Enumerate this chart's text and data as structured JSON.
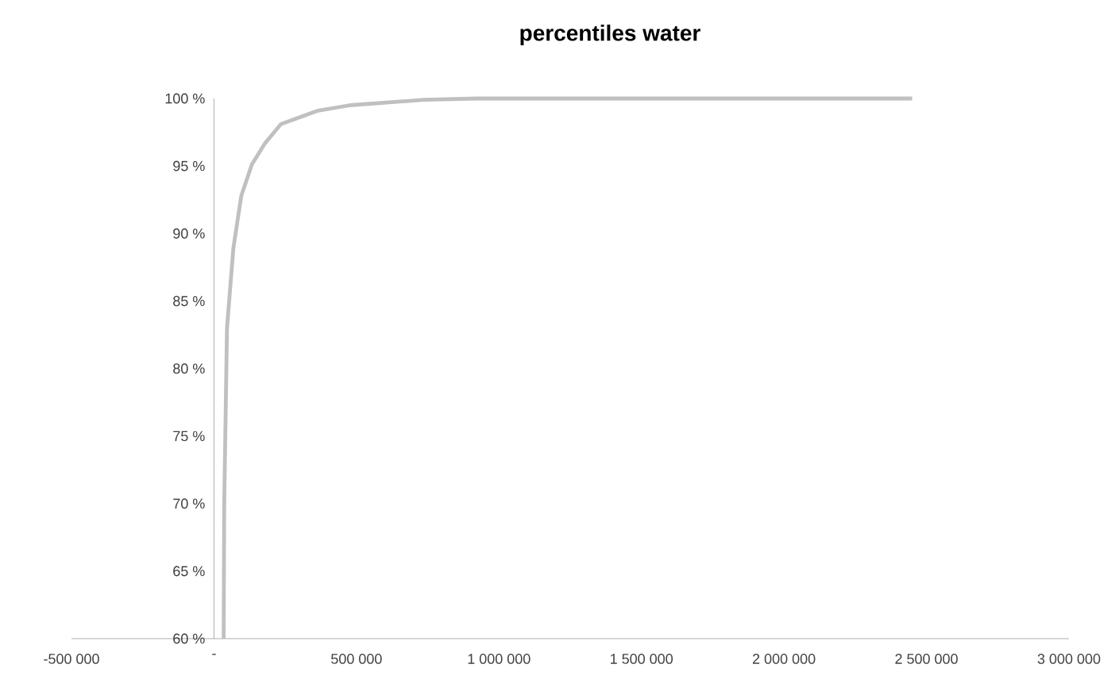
{
  "chart_data": {
    "type": "line",
    "title": "percentiles water",
    "x": [
      34000,
      36000,
      45700,
      68000,
      95900,
      132700,
      179500,
      235000,
      365000,
      477000,
      737000,
      925000,
      2450000
    ],
    "series": [
      {
        "color": "#c0c0c0",
        "values": [
          60,
          70,
          83,
          88.9,
          92.8,
          95.1,
          96.7,
          98.1,
          99.1,
          99.5,
          99.9,
          100,
          100
        ]
      }
    ],
    "xlim": [
      -500000,
      3000000
    ],
    "xticks": [
      {
        "value": -500000,
        "label": "-500 000"
      },
      {
        "value": 0,
        "label": "-"
      },
      {
        "value": 500000,
        "label": "500 000"
      },
      {
        "value": 1000000,
        "label": "1 000 000"
      },
      {
        "value": 1500000,
        "label": "1 500 000"
      },
      {
        "value": 2000000,
        "label": "2 000 000"
      },
      {
        "value": 2500000,
        "label": "2 500 000"
      },
      {
        "value": 3000000,
        "label": "3 000 000"
      }
    ],
    "ylim": [
      60,
      100
    ],
    "yticks": [
      {
        "value": 60,
        "label": "60 %"
      },
      {
        "value": 65,
        "label": "65 %"
      },
      {
        "value": 70,
        "label": "70 %"
      },
      {
        "value": 75,
        "label": "75 %"
      },
      {
        "value": 80,
        "label": "80 %"
      },
      {
        "value": 85,
        "label": "85 %"
      },
      {
        "value": 90,
        "label": "90 %"
      },
      {
        "value": 95,
        "label": "95 %"
      },
      {
        "value": 100,
        "label": "100 %"
      }
    ]
  }
}
